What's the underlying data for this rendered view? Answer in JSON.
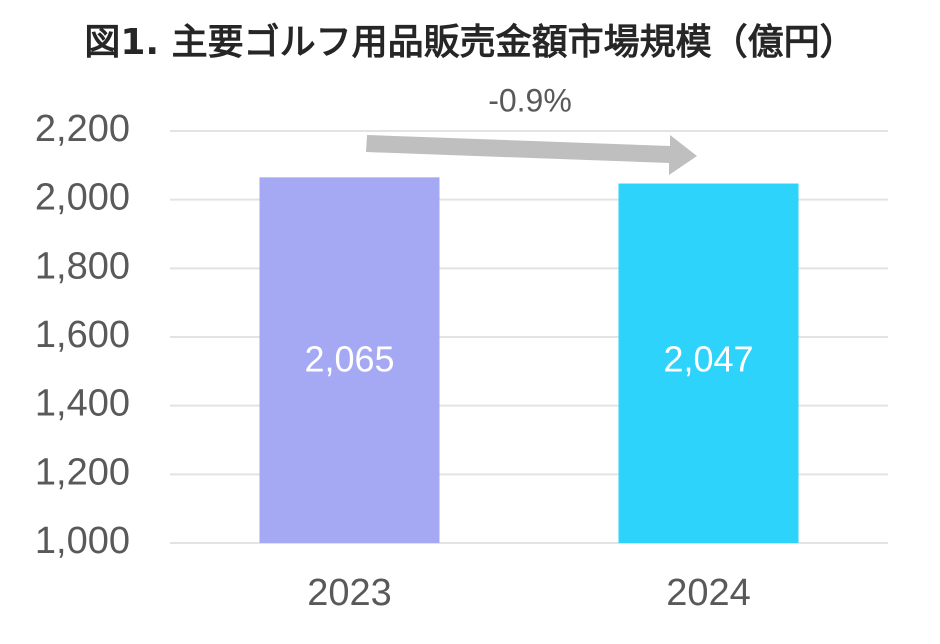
{
  "chart_data": {
    "type": "bar",
    "title": "図1. 主要ゴルフ用品販売金額市場規模（億円）",
    "annotation": "-0.9%",
    "categories": [
      "2023",
      "2024"
    ],
    "values": [
      2065,
      2047
    ],
    "value_labels": [
      "2,065",
      "2,047"
    ],
    "colors": [
      "#a5a8f2",
      "#2dd3fb"
    ],
    "ylim": [
      1000,
      2200
    ],
    "yticks": [
      {
        "value": 1000,
        "label": "1,000"
      },
      {
        "value": 1200,
        "label": "1,200"
      },
      {
        "value": 1400,
        "label": "1,400"
      },
      {
        "value": 1600,
        "label": "1,600"
      },
      {
        "value": 1800,
        "label": "1,800"
      },
      {
        "value": 2000,
        "label": "2,000"
      },
      {
        "value": 2200,
        "label": "2,200"
      }
    ],
    "grid": true
  }
}
